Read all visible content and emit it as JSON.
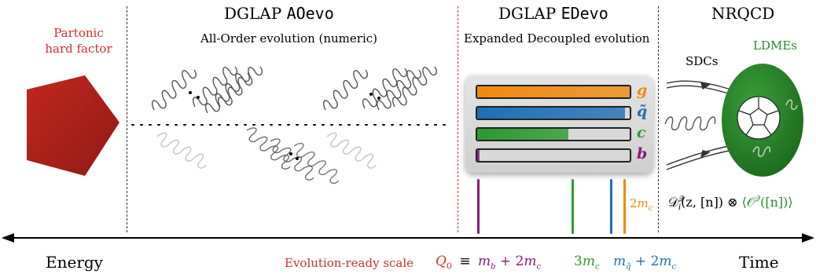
{
  "colors": {
    "partonic": "#b0201a",
    "red_label": "#d0312d",
    "gluon_bar": "#f08a10",
    "squark_bar": "#1f6fb5",
    "charm_bar": "#2c9a2c",
    "bottom_bar": "#8b1a7a",
    "ldme_green": "#2a8a2a"
  },
  "sections": {
    "partonic": {
      "line1": "Partonic",
      "line2": "hard factor"
    },
    "aoevo": {
      "title_prefix": "DGLAP",
      "title_code": "AOevo",
      "subtitle": "All-Order evolution (numeric)"
    },
    "edevo": {
      "title_prefix": "DGLAP",
      "title_code": "EDevo",
      "subtitle": "Expanded Decoupled evolution"
    },
    "nrqcd": {
      "title": "NRQCD",
      "sdcs": "SDCs",
      "ldmes": "LDMEs"
    }
  },
  "channels": [
    {
      "label": "g",
      "fill": 1.0,
      "color": "#f08a10"
    },
    {
      "label": "q̃",
      "fill": 0.97,
      "color": "#1f6fb5"
    },
    {
      "label": "c",
      "fill": 0.6,
      "color": "#2c9a2c"
    },
    {
      "label": "b",
      "fill": 0.01,
      "color": "#8b1a7a"
    }
  ],
  "axis": {
    "left_label": "Energy",
    "right_label": "Time",
    "ready_scale": "Evolution-ready scale",
    "q0": "Q",
    "q0_sub": "0",
    "equiv": "≡",
    "mb_expr_m": "m",
    "mb_sub": "b",
    "mb_rest": " + 2",
    "mb_m2": "m",
    "mb_sub2": "c",
    "three_mc": "3",
    "three_mc_m": "m",
    "three_mc_sub": "c",
    "mq_m": "m",
    "mq_sub": "q̃",
    "mq_rest": " + 2",
    "mq_m2": "m",
    "mq_sub2": "c",
    "two_mc": "2",
    "two_mc_m": "m",
    "two_mc_sub": "c"
  },
  "formula": {
    "D": "𝒟",
    "D_sup": "𝒬",
    "D_sub": "i",
    "args": "(z, [n])",
    "otimes": " ⊗ ",
    "ldme": "⟨𝒪",
    "ldme_sup": "𝒬",
    "ldme_rest": "([n])⟩"
  },
  "icons": [
    "pentagon-icon",
    "gluon-spring-icon",
    "dodecahedron-icon"
  ]
}
